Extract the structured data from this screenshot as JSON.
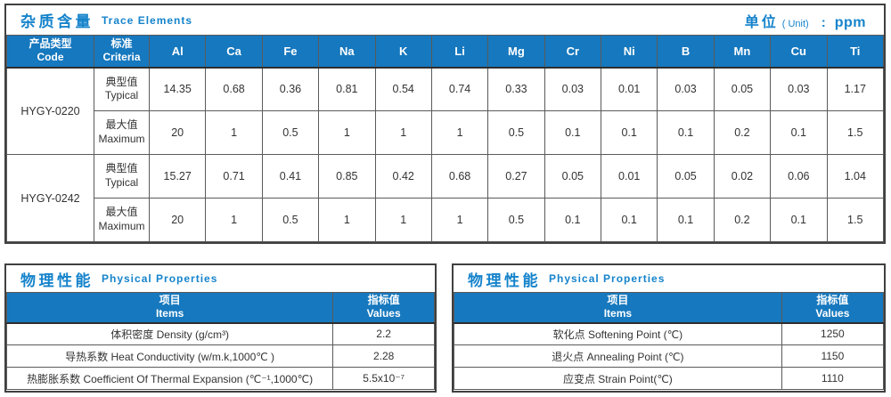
{
  "colors": {
    "header_blue": "#1678be",
    "title_blue": "#1583cb",
    "outer_border": "#404040",
    "cell_border": "#5a5a5a",
    "text": "#333333"
  },
  "trace": {
    "title_zh": "杂质含量",
    "title_en": "Trace Elements",
    "unit_zh": "单位",
    "unit_paren": "( Unit)",
    "unit_colon": ":",
    "unit_value": "ppm",
    "col_product_zh": "产品类型",
    "col_product_en": "Code",
    "col_criteria_zh": "标准",
    "col_criteria_en": "Criteria",
    "elements": [
      "Al",
      "Ca",
      "Fe",
      "Na",
      "K",
      "Li",
      "Mg",
      "Cr",
      "Ni",
      "B",
      "Mn",
      "Cu",
      "Ti"
    ],
    "groups": [
      {
        "code": "HYGY-0220",
        "rows": [
          {
            "label_zh": "典型值",
            "label_en": "Typical",
            "values": [
              "14.35",
              "0.68",
              "0.36",
              "0.81",
              "0.54",
              "0.74",
              "0.33",
              "0.03",
              "0.01",
              "0.03",
              "0.05",
              "0.03",
              "1.17"
            ]
          },
          {
            "label_zh": "最大值",
            "label_en": "Maximum",
            "values": [
              "20",
              "1",
              "0.5",
              "1",
              "1",
              "1",
              "0.5",
              "0.1",
              "0.1",
              "0.1",
              "0.2",
              "0.1",
              "1.5"
            ]
          }
        ]
      },
      {
        "code": "HYGY-0242",
        "rows": [
          {
            "label_zh": "典型值",
            "label_en": "Typical",
            "values": [
              "15.27",
              "0.71",
              "0.41",
              "0.85",
              "0.42",
              "0.68",
              "0.27",
              "0.05",
              "0.01",
              "0.05",
              "0.02",
              "0.06",
              "1.04"
            ]
          },
          {
            "label_zh": "最大值",
            "label_en": "Maximum",
            "values": [
              "20",
              "1",
              "0.5",
              "1",
              "1",
              "1",
              "0.5",
              "0.1",
              "0.1",
              "0.1",
              "0.2",
              "0.1",
              "1.5"
            ]
          }
        ]
      }
    ]
  },
  "phys_left": {
    "title_zh": "物理性能",
    "title_en": "Physical Properties",
    "col_items_zh": "项目",
    "col_items_en": "Items",
    "col_values_zh": "指标值",
    "col_values_en": "Values",
    "rows": [
      {
        "item": "体积密度 Density (g/cm³)",
        "value": "2.2"
      },
      {
        "item": "导热系数 Heat Conductivity (w/m.k,1000℃ )",
        "value": "2.28"
      },
      {
        "item": "热膨胀系数 Coefficient Of Thermal Expansion (℃⁻¹,1000℃)",
        "value": "5.5x10⁻⁷"
      }
    ]
  },
  "phys_right": {
    "title_zh": "物理性能",
    "title_en": "Physical Properties",
    "col_items_zh": "项目",
    "col_items_en": "Items",
    "col_values_zh": "指标值",
    "col_values_en": "Values",
    "rows": [
      {
        "item": "软化点 Softening Point (℃)",
        "value": "1250"
      },
      {
        "item": "退火点 Annealing Point (℃)",
        "value": "1150"
      },
      {
        "item": "应变点 Strain Point(℃)",
        "value": "1110"
      }
    ]
  }
}
